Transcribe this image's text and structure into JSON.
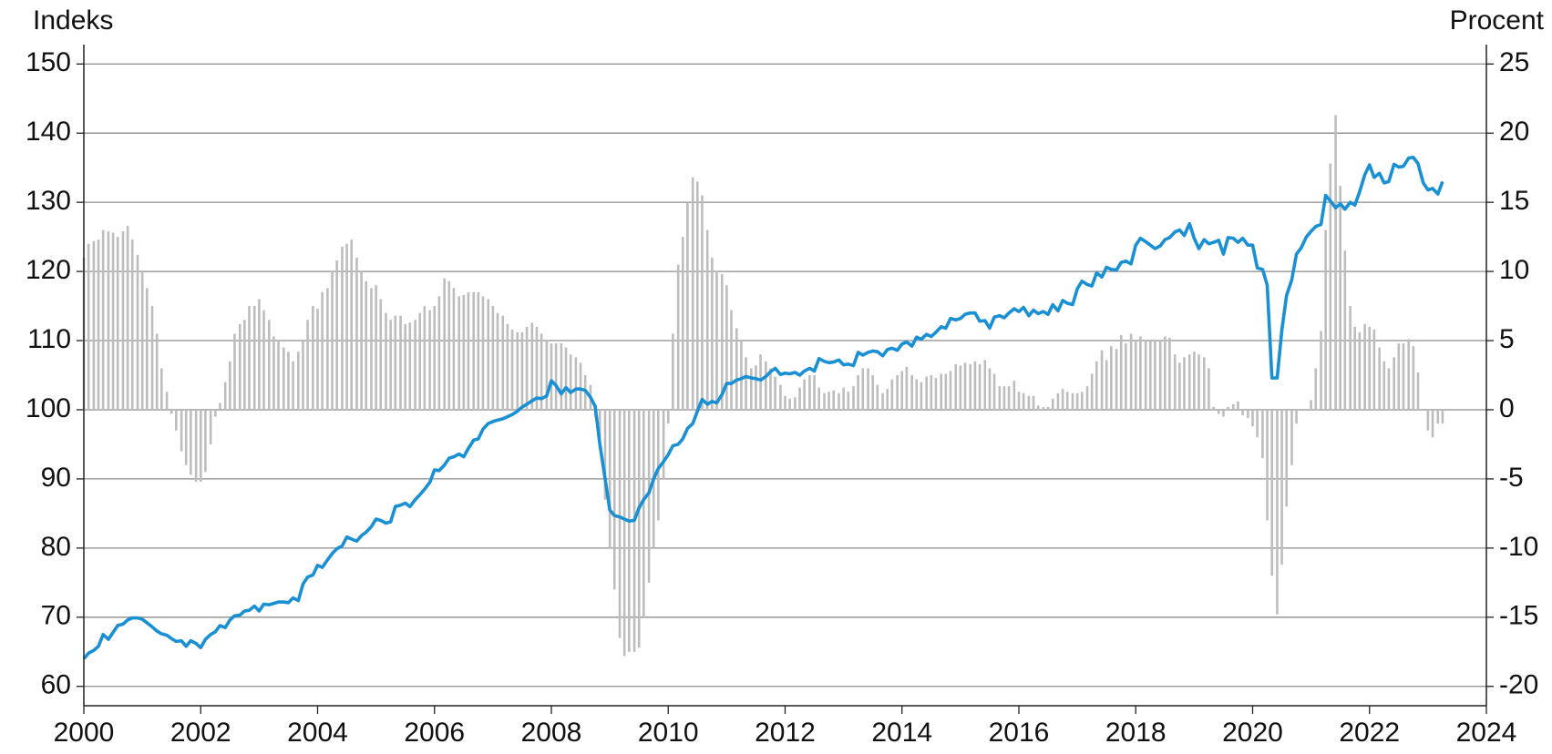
{
  "chart_data": {
    "type": "line",
    "ylabel": "Indeks",
    "y2label": "Procent",
    "xlim": [
      2000,
      2024
    ],
    "xticks": [
      2000,
      2002,
      2004,
      2006,
      2008,
      2010,
      2012,
      2014,
      2016,
      2018,
      2020,
      2022,
      2024
    ],
    "ylim": [
      57.2,
      152.8
    ],
    "yticks": [
      60,
      70,
      80,
      90,
      100,
      110,
      120,
      130,
      140,
      150
    ],
    "y2lim": [
      -21.4,
      26.4
    ],
    "y2ticks": [
      -20,
      -15,
      -10,
      -5,
      0,
      5,
      10,
      15,
      20,
      25
    ],
    "grid": true,
    "x": [
      2000,
      2000.08,
      2000.17,
      2000.25,
      2000.33,
      2000.42,
      2000.5,
      2000.58,
      2000.67,
      2000.75,
      2000.83,
      2000.92,
      2001,
      2001.08,
      2001.17,
      2001.25,
      2001.33,
      2001.42,
      2001.5,
      2001.58,
      2001.67,
      2001.75,
      2001.83,
      2001.92,
      2002,
      2002.08,
      2002.17,
      2002.25,
      2002.33,
      2002.42,
      2002.5,
      2002.58,
      2002.67,
      2002.75,
      2002.83,
      2002.92,
      2003,
      2003.08,
      2003.17,
      2003.25,
      2003.33,
      2003.42,
      2003.5,
      2003.58,
      2003.67,
      2003.75,
      2003.83,
      2003.92,
      2004,
      2004.08,
      2004.17,
      2004.25,
      2004.33,
      2004.42,
      2004.5,
      2004.58,
      2004.67,
      2004.75,
      2004.83,
      2004.92,
      2005,
      2005.08,
      2005.17,
      2005.25,
      2005.33,
      2005.42,
      2005.5,
      2005.58,
      2005.67,
      2005.75,
      2005.83,
      2005.92,
      2006,
      2006.08,
      2006.17,
      2006.25,
      2006.33,
      2006.42,
      2006.5,
      2006.58,
      2006.67,
      2006.75,
      2006.83,
      2006.92,
      2007,
      2007.08,
      2007.17,
      2007.25,
      2007.33,
      2007.42,
      2007.5,
      2007.58,
      2007.67,
      2007.75,
      2007.83,
      2007.92,
      2008,
      2008.08,
      2008.17,
      2008.25,
      2008.33,
      2008.42,
      2008.5,
      2008.58,
      2008.67,
      2008.75,
      2008.83,
      2008.92,
      2009,
      2009.08,
      2009.17,
      2009.25,
      2009.33,
      2009.42,
      2009.5,
      2009.58,
      2009.67,
      2009.75,
      2009.83,
      2009.92,
      2010,
      2010.08,
      2010.17,
      2010.25,
      2010.33,
      2010.42,
      2010.5,
      2010.58,
      2010.67,
      2010.75,
      2010.83,
      2010.92,
      2011,
      2011.08,
      2011.17,
      2011.25,
      2011.33,
      2011.42,
      2011.5,
      2011.58,
      2011.67,
      2011.75,
      2011.83,
      2011.92,
      2012,
      2012.08,
      2012.17,
      2012.25,
      2012.33,
      2012.42,
      2012.5,
      2012.58,
      2012.67,
      2012.75,
      2012.83,
      2012.92,
      2013,
      2013.08,
      2013.17,
      2013.25,
      2013.33,
      2013.42,
      2013.5,
      2013.58,
      2013.67,
      2013.75,
      2013.83,
      2013.92,
      2014,
      2014.08,
      2014.17,
      2014.25,
      2014.33,
      2014.42,
      2014.5,
      2014.58,
      2014.67,
      2014.75,
      2014.83,
      2014.92,
      2015,
      2015.08,
      2015.17,
      2015.25,
      2015.33,
      2015.42,
      2015.5,
      2015.58,
      2015.67,
      2015.75,
      2015.83,
      2015.92,
      2016,
      2016.08,
      2016.17,
      2016.25,
      2016.33,
      2016.42,
      2016.5,
      2016.58,
      2016.67,
      2016.75,
      2016.83,
      2016.92,
      2017,
      2017.08,
      2017.17,
      2017.25,
      2017.33,
      2017.42,
      2017.5,
      2017.58,
      2017.67,
      2017.75,
      2017.83,
      2017.92,
      2018,
      2018.08,
      2018.17,
      2018.25,
      2018.33,
      2018.42,
      2018.5,
      2018.58,
      2018.67,
      2018.75,
      2018.83,
      2018.92,
      2019,
      2019.08,
      2019.17,
      2019.25,
      2019.33,
      2019.42,
      2019.5,
      2019.58,
      2019.67,
      2019.75,
      2019.83,
      2019.92,
      2020,
      2020.08,
      2020.17,
      2020.25,
      2020.33,
      2020.42,
      2020.5,
      2020.58,
      2020.67,
      2020.75,
      2020.83,
      2020.92,
      2021,
      2021.08,
      2021.17,
      2021.25,
      2021.33,
      2021.42,
      2021.5,
      2021.58,
      2021.67,
      2021.75,
      2021.83,
      2021.92,
      2022,
      2022.08,
      2022.17,
      2022.25,
      2022.33,
      2022.42,
      2022.5,
      2022.58,
      2022.67,
      2022.75,
      2022.83,
      2022.92,
      2023,
      2023.08,
      2023.17,
      2023.25
    ],
    "series": [
      {
        "type": "bar",
        "axis": "y2",
        "color": "#bdbdbd",
        "values": [
          11,
          12,
          12.2,
          12.3,
          13,
          12.9,
          12.8,
          12.5,
          12.9,
          13.3,
          12.3,
          11.2,
          10,
          8.8,
          7.5,
          5.5,
          3,
          1.3,
          -0.3,
          -1.5,
          -3,
          -4,
          -4.7,
          -5.2,
          -5.2,
          -4.5,
          -2.5,
          -0.5,
          0.5,
          2,
          3.5,
          5.5,
          6.2,
          6.5,
          7.5,
          7.5,
          8,
          7.2,
          6.5,
          5.3,
          5,
          4.5,
          4.2,
          3.5,
          4.2,
          5,
          6.5,
          7.5,
          7.3,
          8.5,
          8.8,
          10,
          10.8,
          11.8,
          12,
          12.3,
          11,
          10,
          9.3,
          8.8,
          9,
          8,
          7,
          6.5,
          6.8,
          6.8,
          6.2,
          6.3,
          6.5,
          7,
          7.5,
          7.2,
          7.5,
          8.2,
          9.5,
          9.3,
          8.8,
          8.2,
          8.3,
          8.5,
          8.5,
          8.5,
          8.2,
          8,
          7.5,
          7,
          6.8,
          6.2,
          5.8,
          5.6,
          5.6,
          6,
          6.3,
          6,
          5.5,
          5,
          4.8,
          4.8,
          4.8,
          4.5,
          4,
          3.8,
          3.4,
          2.5,
          1.8,
          -0.5,
          -2,
          -6.5,
          -10,
          -13,
          -16.5,
          -17.8,
          -17.5,
          -17.5,
          -17.2,
          -15,
          -12.5,
          -10,
          -8,
          -5,
          -1,
          5.5,
          10.5,
          12.5,
          15,
          16.8,
          16.5,
          15.5,
          13,
          11,
          10,
          9.8,
          9,
          7.2,
          5.9,
          5,
          3.8,
          3,
          3.2,
          4,
          3.5,
          3,
          2.4,
          1.8,
          1,
          0.8,
          0.9,
          1.6,
          2.2,
          2.5,
          2.5,
          1.6,
          1.2,
          1.3,
          1.4,
          1.2,
          1.6,
          1.3,
          1.7,
          2.5,
          3,
          3,
          2.5,
          1.8,
          1.2,
          1.5,
          2.2,
          2.5,
          2.8,
          3.1,
          2.5,
          2.2,
          2,
          2.4,
          2.5,
          2.3,
          2.6,
          2.6,
          2.8,
          3.3,
          3.2,
          3.4,
          3.3,
          3.5,
          3.3,
          3.6,
          3,
          2.6,
          1.7,
          1.7,
          1.7,
          2.1,
          1.3,
          1.2,
          1,
          1,
          0.3,
          0.2,
          0.2,
          0.8,
          1.2,
          1.5,
          1.3,
          1.2,
          1.2,
          1.3,
          1.7,
          2.6,
          3.5,
          4.3,
          3.6,
          4.6,
          4.4,
          5.4,
          4.8,
          5.5,
          5,
          5.3,
          5,
          5,
          5,
          5,
          5.3,
          5.2,
          4,
          3.4,
          3.8,
          4,
          4.2,
          4,
          3.8,
          3,
          0.2,
          -0.3,
          -0.5,
          0.2,
          0.4,
          0.6,
          -0.4,
          -0.6,
          -1.2,
          -2,
          -3.5,
          -8,
          -12,
          -14.8,
          -11.2,
          -7,
          -4,
          -1,
          0,
          0,
          0.7,
          3,
          5.7,
          13,
          17.8,
          21.3,
          16.2,
          11.5,
          7.5,
          6,
          5.6,
          6.2,
          6,
          5.8,
          4.5,
          3.5,
          3,
          3.8,
          4.8,
          4.8,
          5.1,
          4.6,
          2.7,
          0,
          -1.5,
          -2,
          -1,
          -1
        ]
      },
      {
        "type": "line",
        "axis": "y",
        "color": "#1a90d4",
        "values": [
          64,
          64.8,
          65.2,
          65.8,
          67.5,
          66.8,
          67.8,
          68.8,
          69,
          69.6,
          69.9,
          69.9,
          69.7,
          69.2,
          68.6,
          68,
          67.6,
          67.4,
          66.9,
          66.5,
          66.6,
          65.8,
          66.6,
          66.2,
          65.6,
          66.8,
          67.5,
          67.9,
          68.8,
          68.5,
          69.6,
          70.2,
          70.3,
          70.9,
          71,
          71.6,
          70.9,
          71.9,
          71.8,
          72,
          72.2,
          72.2,
          72.1,
          72.8,
          72.4,
          74.8,
          75.8,
          76.1,
          77.5,
          77.2,
          78.3,
          79.2,
          79.9,
          80.3,
          81.6,
          81.3,
          81,
          81.8,
          82.3,
          83.1,
          84.2,
          84,
          83.6,
          83.8,
          86,
          86.2,
          86.5,
          86,
          87,
          87.7,
          88.5,
          89.5,
          91.3,
          91.2,
          92,
          93,
          93.2,
          93.6,
          93.2,
          94.4,
          95.6,
          95.8,
          97.2,
          98,
          98.3,
          98.5,
          98.7,
          99,
          99.3,
          99.8,
          100.4,
          100.8,
          101.3,
          101.7,
          101.6,
          102,
          104.2,
          103.5,
          102.3,
          103.2,
          102.5,
          103,
          103,
          102.8,
          101.8,
          100.5,
          95,
          90,
          85.5,
          84.7,
          84.5,
          84.2,
          83.9,
          84,
          85.8,
          87,
          88,
          90,
          91.5,
          92.5,
          93.5,
          94.8,
          95,
          95.8,
          97.3,
          98,
          99.8,
          101.5,
          100.8,
          101.2,
          101,
          102.2,
          103.8,
          103.8,
          104.3,
          104.5,
          104.8,
          104.6,
          104.5,
          104.3,
          104.8,
          105.5,
          106,
          105.1,
          105.3,
          105.2,
          105.4,
          105,
          105.6,
          106,
          105.6,
          107.4,
          107,
          106.8,
          106.9,
          107.2,
          106.5,
          106.6,
          106.4,
          108.3,
          107.9,
          108.3,
          108.5,
          108.4,
          107.8,
          108.7,
          108.9,
          108.6,
          109.5,
          109.8,
          109.2,
          110.5,
          110.2,
          110.9,
          110.6,
          111.2,
          112,
          111.8,
          113.2,
          113,
          113.2,
          113.8,
          114,
          114,
          112.8,
          112.9,
          111.8,
          113.4,
          113.6,
          113.3,
          114,
          114.6,
          114.2,
          114.8,
          113.6,
          114.4,
          113.9,
          114.2,
          113.8,
          115.2,
          114.3,
          115.8,
          115.4,
          115.2,
          117.5,
          118.6,
          118.1,
          117.9,
          119.8,
          119.2,
          120.6,
          120.3,
          120.2,
          121.3,
          121.5,
          121.1,
          123.8,
          124.8,
          124.3,
          123.8,
          123.3,
          123.7,
          124.6,
          124.9,
          125.7,
          126,
          125.2,
          126.9,
          124.8,
          123.3,
          124.6,
          124,
          124.2,
          124.5,
          122.5,
          124.9,
          124.8,
          124.2,
          124.8,
          123.8,
          123.8,
          120.5,
          120.3,
          118,
          104.6,
          104.6,
          111.5,
          116.5,
          118.8,
          122.5,
          123.4,
          125,
          125.8,
          126.5,
          126.8,
          131,
          130.2,
          129.2,
          129.8,
          129,
          130,
          129.6,
          131.5,
          134,
          135.4,
          133.6,
          134.2,
          132.8,
          133,
          135.5,
          135.1,
          135.2,
          136.4,
          136.5,
          135.6,
          132.8,
          131.8,
          132,
          131.2,
          133
        ]
      }
    ]
  }
}
